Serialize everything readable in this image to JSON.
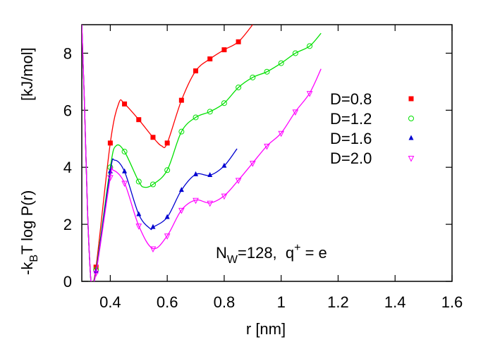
{
  "chart_data": {
    "type": "line",
    "y_label": {
      "main": [
        "-k",
        "B",
        "T log P(r)"
      ],
      "unit": "[kJ/mol]"
    },
    "x_label": "r [nm]",
    "annotation": [
      "N",
      "W",
      "=128,  q",
      "+",
      " = e"
    ],
    "xlim": [
      0.3,
      1.6
    ],
    "ylim": [
      0,
      9
    ],
    "xticks": [
      0.4,
      0.6,
      0.8,
      1,
      1.2,
      1.4,
      1.6
    ],
    "yticks": [
      0,
      2,
      4,
      6,
      8
    ],
    "legend": "upper right",
    "series": [
      {
        "name": "D=0.8",
        "color": "#ff0000",
        "marker": "square",
        "x": [
          0.35,
          0.4,
          0.45,
          0.5,
          0.55,
          0.6,
          0.65,
          0.7,
          0.75,
          0.8,
          0.85
        ],
        "values": [
          0.5,
          4.85,
          6.22,
          5.67,
          5.05,
          4.85,
          6.35,
          7.38,
          7.8,
          8.12,
          8.4
        ],
        "curve_x": [
          0.3,
          0.31,
          0.32,
          0.33,
          0.335,
          0.35,
          0.4,
          0.43,
          0.45,
          0.5,
          0.55,
          0.58,
          0.6,
          0.65,
          0.7,
          0.75,
          0.8,
          0.85,
          0.9
        ],
        "curve_values": [
          9,
          6,
          2.5,
          0.3,
          0,
          0.5,
          4.85,
          6.25,
          6.22,
          5.67,
          5.05,
          4.75,
          4.85,
          6.35,
          7.38,
          7.8,
          8.12,
          8.4,
          9
        ]
      },
      {
        "name": "D=1.2",
        "color": "#00e000",
        "marker": "circle",
        "x": [
          0.35,
          0.4,
          0.45,
          0.5,
          0.55,
          0.6,
          0.65,
          0.7,
          0.75,
          0.8,
          0.85,
          0.9,
          0.95,
          1.0,
          1.05,
          1.1
        ],
        "values": [
          0.4,
          4.0,
          4.55,
          3.5,
          3.4,
          3.9,
          5.25,
          5.75,
          5.95,
          6.25,
          6.8,
          7.15,
          7.35,
          7.65,
          8.0,
          8.25
        ],
        "curve_x": [
          0.3,
          0.31,
          0.32,
          0.33,
          0.335,
          0.35,
          0.4,
          0.42,
          0.45,
          0.5,
          0.52,
          0.55,
          0.6,
          0.65,
          0.7,
          0.75,
          0.8,
          0.85,
          0.9,
          0.95,
          1.0,
          1.05,
          1.1,
          1.14
        ],
        "curve_values": [
          9,
          6,
          2.5,
          0.3,
          0,
          0.4,
          4.0,
          4.75,
          4.55,
          3.5,
          3.3,
          3.4,
          3.9,
          5.25,
          5.75,
          5.95,
          6.25,
          6.8,
          7.15,
          7.35,
          7.65,
          8.0,
          8.25,
          8.7
        ]
      },
      {
        "name": "D=1.6",
        "color": "#0000d0",
        "marker": "triangle",
        "x": [
          0.35,
          0.4,
          0.45,
          0.5,
          0.55,
          0.6,
          0.65,
          0.7,
          0.75,
          0.8
        ],
        "values": [
          0.35,
          3.85,
          3.85,
          2.35,
          1.9,
          2.25,
          3.2,
          3.75,
          3.72,
          4.05
        ],
        "curve_x": [
          0.3,
          0.31,
          0.32,
          0.33,
          0.335,
          0.35,
          0.4,
          0.415,
          0.45,
          0.5,
          0.54,
          0.55,
          0.6,
          0.65,
          0.7,
          0.75,
          0.8,
          0.845
        ],
        "curve_values": [
          9,
          6,
          2.5,
          0.3,
          0,
          0.35,
          3.85,
          4.25,
          3.85,
          2.35,
          1.85,
          1.9,
          2.25,
          3.2,
          3.75,
          3.72,
          4.05,
          4.65
        ]
      },
      {
        "name": "D=2.0",
        "color": "#ff00ff",
        "marker": "triangle-down",
        "x": [
          0.35,
          0.4,
          0.45,
          0.5,
          0.55,
          0.6,
          0.65,
          0.7,
          0.75,
          0.8,
          0.85,
          0.9,
          0.95,
          1.0,
          1.05,
          1.1
        ],
        "values": [
          0.3,
          3.65,
          3.45,
          1.95,
          1.15,
          1.6,
          2.5,
          2.85,
          2.75,
          3.0,
          3.55,
          4.15,
          4.75,
          5.2,
          5.95,
          6.6
        ],
        "curve_x": [
          0.3,
          0.31,
          0.32,
          0.33,
          0.335,
          0.35,
          0.4,
          0.41,
          0.45,
          0.5,
          0.55,
          0.6,
          0.65,
          0.7,
          0.75,
          0.8,
          0.85,
          0.9,
          0.95,
          1.0,
          1.05,
          1.1,
          1.14
        ],
        "curve_values": [
          9,
          6,
          2.5,
          0.3,
          0,
          0.3,
          3.65,
          3.9,
          3.45,
          1.95,
          1.15,
          1.6,
          2.5,
          2.85,
          2.75,
          3.0,
          3.55,
          4.15,
          4.75,
          5.2,
          5.95,
          6.6,
          7.45
        ]
      }
    ]
  }
}
